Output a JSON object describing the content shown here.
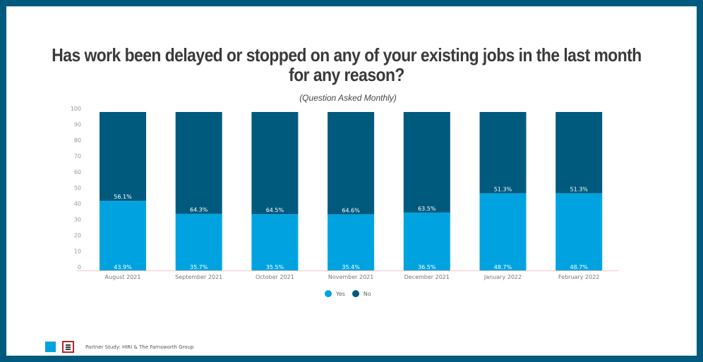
{
  "title": "Has work been delayed or stopped on any of your existing jobs in the last month for any reason?",
  "subtitle": "(Question Asked Monthly)",
  "footer": {
    "text": "Partner Study:  HIRI & The Farnsworth Group",
    "logo_hiri": "HIRI"
  },
  "chart_data": {
    "type": "bar",
    "stacked": true,
    "title": "Has work been delayed or stopped on any of your existing jobs in the last month for any reason?",
    "categories": [
      "August 2021",
      "September 2021",
      "October 2021",
      "November 2021",
      "December 2021",
      "January 2022",
      "February 2022"
    ],
    "series": [
      {
        "name": "Yes",
        "color": "#00a3e0",
        "values": [
          43.9,
          35.7,
          35.5,
          35.4,
          36.5,
          48.7,
          48.7
        ],
        "labels": [
          "43.9%",
          "35.7%",
          "35.5%",
          "35.4%",
          "36.5%",
          "48.7%",
          "48.7%"
        ]
      },
      {
        "name": "No",
        "color": "#005a7d",
        "values": [
          56.1,
          64.3,
          64.5,
          64.6,
          63.5,
          51.3,
          51.3
        ],
        "labels": [
          "56.1%",
          "64.3%",
          "64.5%",
          "64.6%",
          "63.5%",
          "51.3%",
          "51.3%"
        ]
      }
    ],
    "yticks": [
      "0",
      "10",
      "20",
      "30",
      "40",
      "50",
      "60",
      "70",
      "80",
      "90",
      "100"
    ],
    "ylim": [
      0,
      100
    ],
    "grid": false,
    "legend": "bottom"
  }
}
